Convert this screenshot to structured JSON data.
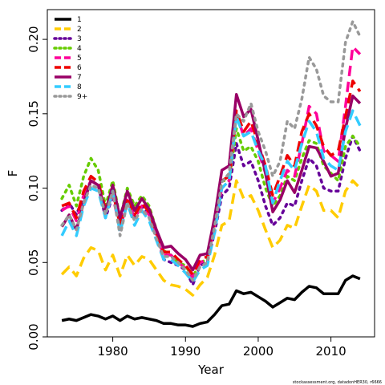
{
  "chart_data": {
    "type": "line",
    "xlabel": "Year",
    "ylabel": "F",
    "xlim": [
      1971,
      2016
    ],
    "ylim": [
      0,
      0.22
    ],
    "xticks": [
      1980,
      1990,
      2000,
      2010
    ],
    "yticks": [
      0.0,
      0.05,
      0.1,
      0.15,
      0.2
    ],
    "ytick_labels": [
      "0.00",
      "0.05",
      "0.10",
      "0.15",
      "0.20"
    ],
    "grid": false,
    "legend_position": "top-left",
    "credit": "stockassessment.org, datadonHER30, r6666",
    "x": [
      1973,
      1974,
      1975,
      1976,
      1977,
      1978,
      1979,
      1980,
      1981,
      1982,
      1983,
      1984,
      1985,
      1986,
      1987,
      1988,
      1989,
      1990,
      1991,
      1992,
      1993,
      1994,
      1995,
      1996,
      1997,
      1998,
      1999,
      2000,
      2001,
      2002,
      2003,
      2004,
      2005,
      2006,
      2007,
      2008,
      2009,
      2010,
      2011,
      2012,
      2013,
      2014
    ],
    "series": [
      {
        "name": "1",
        "color": "#000000",
        "dash": "solid",
        "values": [
          0.011,
          0.012,
          0.011,
          0.013,
          0.015,
          0.014,
          0.012,
          0.014,
          0.011,
          0.014,
          0.012,
          0.013,
          0.012,
          0.011,
          0.009,
          0.009,
          0.008,
          0.008,
          0.007,
          0.009,
          0.01,
          0.015,
          0.021,
          0.022,
          0.031,
          0.029,
          0.03,
          0.027,
          0.024,
          0.02,
          0.023,
          0.026,
          0.025,
          0.03,
          0.034,
          0.033,
          0.029,
          0.029,
          0.029,
          0.038,
          0.041,
          0.039
        ]
      },
      {
        "name": "2",
        "color": "#ffcc00",
        "dash": "long",
        "values": [
          0.042,
          0.047,
          0.041,
          0.053,
          0.06,
          0.058,
          0.045,
          0.055,
          0.041,
          0.055,
          0.048,
          0.054,
          0.052,
          0.045,
          0.038,
          0.035,
          0.034,
          0.032,
          0.028,
          0.035,
          0.04,
          0.055,
          0.075,
          0.078,
          0.105,
          0.093,
          0.095,
          0.085,
          0.072,
          0.06,
          0.065,
          0.075,
          0.073,
          0.088,
          0.102,
          0.098,
          0.085,
          0.085,
          0.08,
          0.098,
          0.105,
          0.1
        ]
      },
      {
        "name": "3",
        "color": "#660099",
        "dash": "dot",
        "values": [
          0.085,
          0.09,
          0.082,
          0.095,
          0.105,
          0.102,
          0.08,
          0.095,
          0.075,
          0.092,
          0.08,
          0.088,
          0.082,
          0.068,
          0.052,
          0.05,
          0.048,
          0.045,
          0.035,
          0.048,
          0.05,
          0.07,
          0.095,
          0.1,
          0.13,
          0.115,
          0.118,
          0.105,
          0.088,
          0.075,
          0.08,
          0.09,
          0.088,
          0.105,
          0.12,
          0.115,
          0.1,
          0.098,
          0.098,
          0.12,
          0.135,
          0.125
        ]
      },
      {
        "name": "4",
        "color": "#66cc00",
        "dash": "dot",
        "values": [
          0.093,
          0.102,
          0.088,
          0.108,
          0.12,
          0.112,
          0.088,
          0.105,
          0.08,
          0.1,
          0.088,
          0.095,
          0.088,
          0.072,
          0.058,
          0.055,
          0.05,
          0.048,
          0.04,
          0.05,
          0.052,
          0.08,
          0.105,
          0.105,
          0.14,
          0.125,
          0.128,
          0.118,
          0.1,
          0.088,
          0.095,
          0.108,
          0.105,
          0.12,
          0.132,
          0.13,
          0.115,
          0.11,
          0.105,
          0.128,
          0.135,
          0.128
        ]
      },
      {
        "name": "5",
        "color": "#ff0099",
        "dash": "long",
        "values": [
          0.085,
          0.088,
          0.078,
          0.095,
          0.105,
          0.102,
          0.085,
          0.095,
          0.072,
          0.092,
          0.08,
          0.088,
          0.082,
          0.068,
          0.055,
          0.055,
          0.05,
          0.046,
          0.04,
          0.05,
          0.052,
          0.075,
          0.1,
          0.105,
          0.15,
          0.135,
          0.14,
          0.125,
          0.11,
          0.09,
          0.1,
          0.112,
          0.108,
          0.13,
          0.155,
          0.15,
          0.125,
          0.122,
          0.118,
          0.155,
          0.195,
          0.19
        ]
      },
      {
        "name": "6",
        "color": "#ee0000",
        "dash": "long",
        "values": [
          0.088,
          0.09,
          0.08,
          0.098,
          0.108,
          0.104,
          0.086,
          0.098,
          0.075,
          0.094,
          0.082,
          0.09,
          0.084,
          0.07,
          0.057,
          0.057,
          0.052,
          0.048,
          0.042,
          0.052,
          0.054,
          0.078,
          0.105,
          0.108,
          0.152,
          0.138,
          0.145,
          0.13,
          0.115,
          0.095,
          0.108,
          0.122,
          0.115,
          0.138,
          0.15,
          0.142,
          0.128,
          0.122,
          0.125,
          0.148,
          0.172,
          0.165
        ]
      },
      {
        "name": "7",
        "color": "#990066",
        "dash": "solid",
        "values": [
          0.074,
          0.082,
          0.072,
          0.09,
          0.105,
          0.102,
          0.084,
          0.102,
          0.08,
          0.098,
          0.085,
          0.093,
          0.086,
          0.072,
          0.06,
          0.061,
          0.056,
          0.052,
          0.045,
          0.055,
          0.056,
          0.08,
          0.112,
          0.115,
          0.163,
          0.148,
          0.153,
          0.132,
          0.11,
          0.084,
          0.092,
          0.105,
          0.097,
          0.112,
          0.128,
          0.127,
          0.118,
          0.108,
          0.11,
          0.14,
          0.162,
          0.157
        ]
      },
      {
        "name": "8",
        "color": "#33ccff",
        "dash": "long",
        "values": [
          0.068,
          0.078,
          0.068,
          0.088,
          0.1,
          0.098,
          0.08,
          0.098,
          0.07,
          0.09,
          0.075,
          0.085,
          0.078,
          0.065,
          0.052,
          0.052,
          0.048,
          0.043,
          0.037,
          0.045,
          0.048,
          0.07,
          0.1,
          0.105,
          0.148,
          0.135,
          0.138,
          0.125,
          0.115,
          0.09,
          0.105,
          0.118,
          0.112,
          0.13,
          0.145,
          0.138,
          0.12,
          0.115,
          0.112,
          0.138,
          0.152,
          0.142
        ]
      },
      {
        "name": "9+",
        "color": "#999999",
        "dash": "dot",
        "values": [
          0.075,
          0.082,
          0.072,
          0.09,
          0.102,
          0.1,
          0.082,
          0.098,
          0.068,
          0.09,
          0.078,
          0.086,
          0.08,
          0.066,
          0.054,
          0.054,
          0.05,
          0.045,
          0.038,
          0.047,
          0.05,
          0.074,
          0.104,
          0.11,
          0.15,
          0.145,
          0.157,
          0.138,
          0.125,
          0.108,
          0.118,
          0.145,
          0.14,
          0.16,
          0.188,
          0.18,
          0.162,
          0.158,
          0.158,
          0.198,
          0.212,
          0.202
        ]
      }
    ]
  }
}
